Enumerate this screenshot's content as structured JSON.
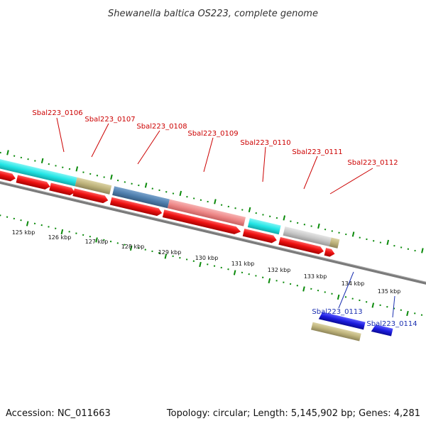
{
  "title": "Shewanella baltica OS223, complete genome",
  "footer": {
    "accession": "Accession: NC_011663",
    "summary": "Topology: circular; Length: 5,145,902 bp; Genes: 4,281"
  },
  "colors": {
    "red_gene": "#ee1111",
    "cyan_feature": "#22e5e5",
    "khaki_feature": "#bdb27a",
    "steel_blue": "#4f7fae",
    "salmon": "#ee8888",
    "gray_feature": "#c7c7c7",
    "blue_gene": "#1b1bdd",
    "backbone": "#7a7a7a",
    "tick_green": "#0a8a0a",
    "label_red": "#cc0000",
    "label_blue": "#1a2fb0"
  },
  "scale_labels": [
    "125 kbp",
    "126 kbp",
    "127 kbp",
    "128 kbp",
    "129 kbp",
    "130 kbp",
    "131 kbp",
    "132 kbp",
    "133 kbp",
    "134 kbp",
    "135 kbp"
  ],
  "top_labels": [
    "Sbal223_0106",
    "Sbal223_0107",
    "Sbal223_0108",
    "Sbal223_0109",
    "Sbal223_0110",
    "Sbal223_0111",
    "Sbal223_0112"
  ],
  "bottom_labels": [
    "Sbal223_0113",
    "Sbal223_0114"
  ]
}
